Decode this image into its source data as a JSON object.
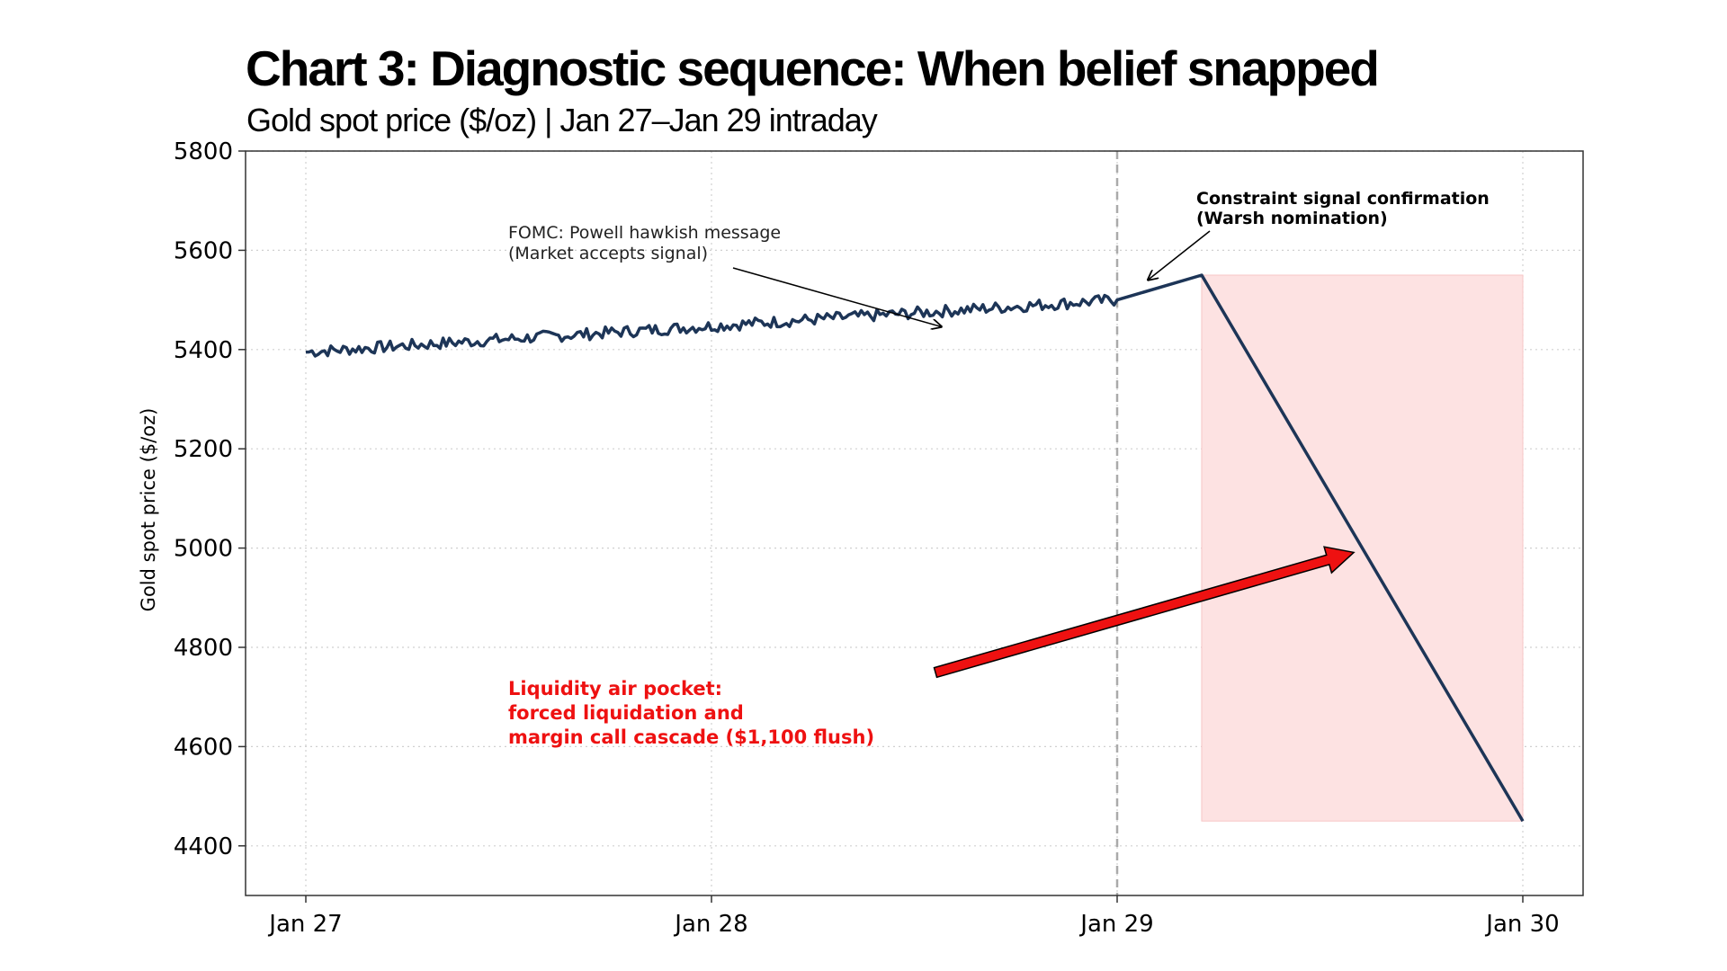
{
  "title": "Chart 3: Diagnostic sequence: When belief snapped",
  "subtitle": "Gold spot price ($/oz) | Jan 27–Jan 29 intraday",
  "chart_data": {
    "type": "line",
    "ylabel": "Gold spot price ($/oz)",
    "xlabel": "",
    "ylim": [
      4300,
      5800
    ],
    "xlim": [
      "Jan 27",
      "Jan 30"
    ],
    "x_ticks": [
      "Jan 27",
      "Jan 28",
      "Jan 29",
      "Jan 30"
    ],
    "y_ticks": [
      "4400",
      "4600",
      "4800",
      "5000",
      "5200",
      "5400",
      "5600",
      "5800"
    ],
    "grid": true,
    "series": [
      {
        "color": "#1d3557",
        "noisy_segment": {
          "start": "Jan 27",
          "end": "Jan 29",
          "start_value": 5395,
          "end_value": 5500,
          "noise_amplitude": 12
        },
        "points": [
          {
            "x": "Jan 29 00:00",
            "y": 5500
          },
          {
            "x": "Jan 29 05:00",
            "y": 5550
          },
          {
            "x": "Jan 30 00:00",
            "y": 4450
          }
        ]
      }
    ],
    "vline": {
      "x": "Jan 29",
      "style": "dashed",
      "color": "#aaaaaa"
    },
    "shaded_region": {
      "x_start": "Jan 29 05:00",
      "x_end": "Jan 30",
      "y_start": 4450,
      "y_end": 5550,
      "color": "#fde2e2"
    },
    "annotations": [
      {
        "lines": [
          "FOMC: Powell hawkish message",
          "(Market accepts signal)"
        ],
        "arrow_to": {
          "x": "Jan 28 12:00",
          "y": 5455
        }
      },
      {
        "lines": [
          "Constraint signal confirmation",
          "(Warsh nomination)"
        ],
        "bold": true,
        "arrow_to": {
          "x": "Jan 29 03:00",
          "y": 5555
        }
      },
      {
        "lines": [
          "Liquidity air pocket:",
          "forced liquidation and",
          "margin call cascade ($1,100 flush)"
        ],
        "color": "#ee1111",
        "bold": true,
        "arrow_to": {
          "x": "Jan 29 14:00",
          "y": 4995
        }
      }
    ]
  }
}
